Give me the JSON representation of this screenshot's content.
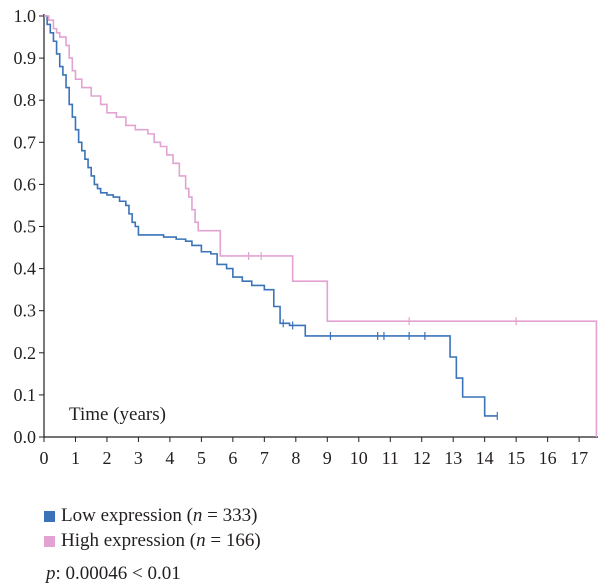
{
  "chart_data": {
    "type": "line",
    "subtype": "kaplan-meier",
    "xlabel": "Time (years)",
    "ylabel": "",
    "xlim": [
      0,
      17.6
    ],
    "ylim": [
      0,
      1.0
    ],
    "x_ticks": [
      "0",
      "1",
      "2",
      "3",
      "4",
      "5",
      "6",
      "7",
      "8",
      "9",
      "10",
      "11",
      "12",
      "13",
      "14",
      "15",
      "16",
      "17"
    ],
    "y_ticks": [
      "0.0",
      "0.1",
      "0.2",
      "0.3",
      "0.4",
      "0.5",
      "0.6",
      "0.7",
      "0.8",
      "0.9",
      "1.0"
    ],
    "grid": false,
    "legend_position": "bottom",
    "series": [
      {
        "name": "Low expression",
        "n_label": "n",
        "n_value": "333",
        "color": "#3a73b8",
        "steps": [
          [
            0,
            1.0
          ],
          [
            0.1,
            0.98
          ],
          [
            0.2,
            0.96
          ],
          [
            0.3,
            0.94
          ],
          [
            0.4,
            0.91
          ],
          [
            0.5,
            0.88
          ],
          [
            0.6,
            0.86
          ],
          [
            0.7,
            0.83
          ],
          [
            0.8,
            0.79
          ],
          [
            0.9,
            0.76
          ],
          [
            1.0,
            0.73
          ],
          [
            1.1,
            0.7
          ],
          [
            1.2,
            0.68
          ],
          [
            1.3,
            0.66
          ],
          [
            1.4,
            0.64
          ],
          [
            1.5,
            0.62
          ],
          [
            1.6,
            0.6
          ],
          [
            1.7,
            0.59
          ],
          [
            1.8,
            0.58
          ],
          [
            2.0,
            0.575
          ],
          [
            2.2,
            0.57
          ],
          [
            2.4,
            0.56
          ],
          [
            2.6,
            0.55
          ],
          [
            2.7,
            0.53
          ],
          [
            2.8,
            0.51
          ],
          [
            2.9,
            0.5
          ],
          [
            3.0,
            0.48
          ],
          [
            3.5,
            0.48
          ],
          [
            3.8,
            0.475
          ],
          [
            4.2,
            0.47
          ],
          [
            4.5,
            0.465
          ],
          [
            4.7,
            0.455
          ],
          [
            5.0,
            0.44
          ],
          [
            5.3,
            0.435
          ],
          [
            5.5,
            0.41
          ],
          [
            5.8,
            0.4
          ],
          [
            6.0,
            0.38
          ],
          [
            6.3,
            0.37
          ],
          [
            6.6,
            0.36
          ],
          [
            7.0,
            0.35
          ],
          [
            7.3,
            0.31
          ],
          [
            7.5,
            0.27
          ],
          [
            7.8,
            0.265
          ],
          [
            8.3,
            0.24
          ],
          [
            12.8,
            0.24
          ],
          [
            12.9,
            0.19
          ],
          [
            13.1,
            0.14
          ],
          [
            13.3,
            0.095
          ],
          [
            13.9,
            0.095
          ],
          [
            14.0,
            0.05
          ],
          [
            14.4,
            0.05
          ]
        ],
        "censor_times": [
          7.6,
          7.9,
          9.1,
          10.6,
          10.8,
          11.6,
          12.1,
          14.4
        ]
      },
      {
        "name": "High expression",
        "n_label": "n",
        "n_value": "166",
        "color": "#e3a3d2",
        "steps": [
          [
            0,
            1.0
          ],
          [
            0.15,
            0.99
          ],
          [
            0.3,
            0.97
          ],
          [
            0.4,
            0.96
          ],
          [
            0.5,
            0.95
          ],
          [
            0.7,
            0.93
          ],
          [
            0.8,
            0.9
          ],
          [
            0.9,
            0.87
          ],
          [
            1.0,
            0.85
          ],
          [
            1.2,
            0.83
          ],
          [
            1.5,
            0.81
          ],
          [
            1.8,
            0.79
          ],
          [
            2.0,
            0.77
          ],
          [
            2.3,
            0.76
          ],
          [
            2.6,
            0.74
          ],
          [
            2.9,
            0.73
          ],
          [
            3.3,
            0.72
          ],
          [
            3.5,
            0.7
          ],
          [
            3.7,
            0.69
          ],
          [
            3.9,
            0.67
          ],
          [
            4.1,
            0.65
          ],
          [
            4.3,
            0.62
          ],
          [
            4.5,
            0.59
          ],
          [
            4.6,
            0.57
          ],
          [
            4.7,
            0.54
          ],
          [
            4.8,
            0.51
          ],
          [
            4.9,
            0.49
          ],
          [
            5.4,
            0.49
          ],
          [
            5.6,
            0.43
          ],
          [
            6.0,
            0.43
          ],
          [
            6.2,
            0.43
          ],
          [
            7.1,
            0.43
          ],
          [
            7.9,
            0.37
          ],
          [
            8.9,
            0.37
          ],
          [
            9.0,
            0.275
          ],
          [
            17.55,
            0.275
          ],
          [
            17.55,
            0
          ]
        ],
        "censor_times": [
          6.5,
          6.9,
          11.6,
          15.0
        ]
      }
    ],
    "annotation_p_label": "p",
    "annotation_p_text": ": 0.00046 < 0.01"
  }
}
